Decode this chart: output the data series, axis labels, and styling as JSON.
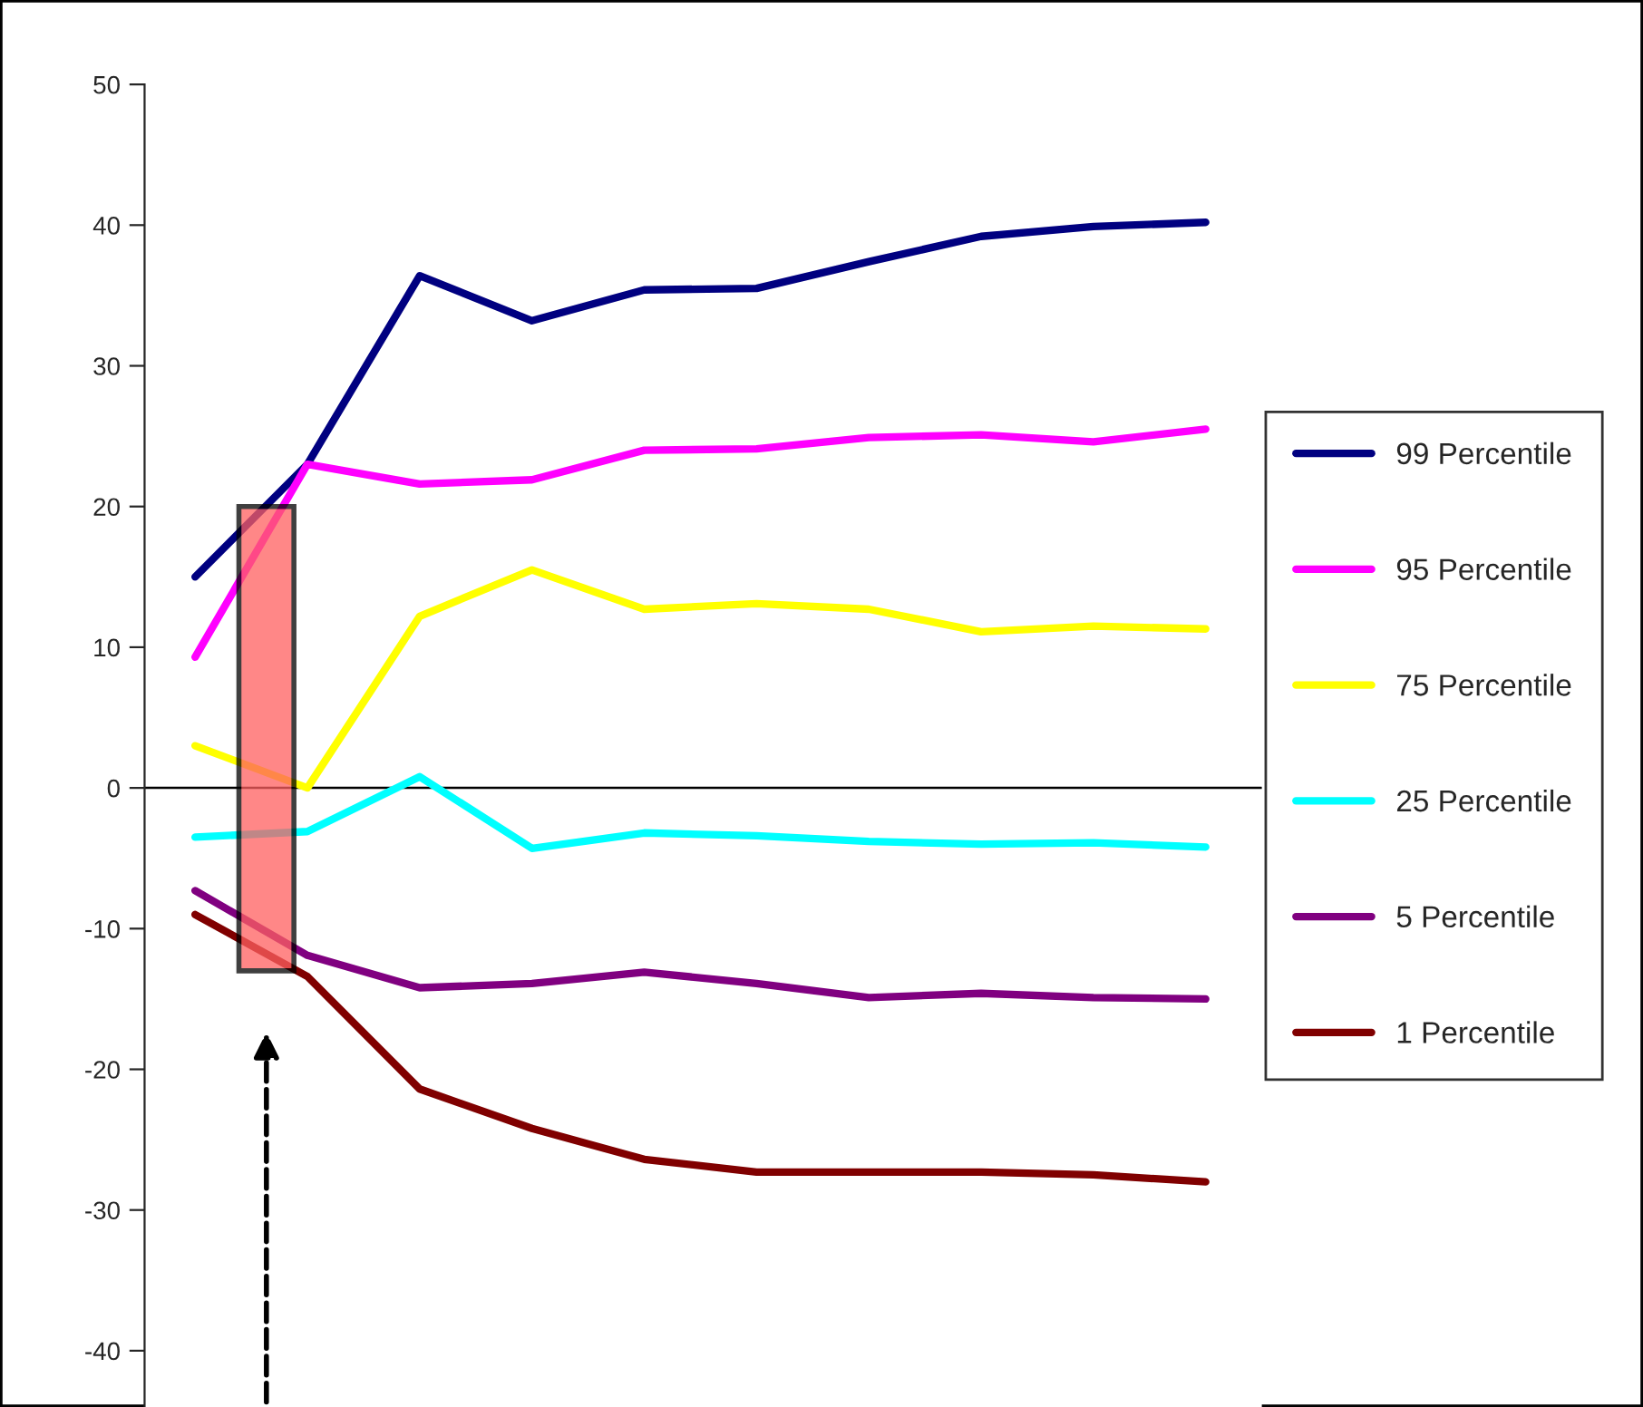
{
  "chart_data": {
    "type": "line",
    "categories": [
      null,
      null,
      null,
      null,
      null,
      null,
      null,
      null,
      null,
      null
    ],
    "series": [
      {
        "name": "99 Percentile",
        "color": "#000080",
        "values": [
          15.0,
          23.0,
          36.4,
          33.2,
          35.4,
          35.5,
          37.4,
          39.2,
          39.9,
          40.2
        ]
      },
      {
        "name": "95 Percentile",
        "color": "#ff00ff",
        "values": [
          9.3,
          23.0,
          21.6,
          21.9,
          24.0,
          24.1,
          24.9,
          25.1,
          24.6,
          25.5
        ]
      },
      {
        "name": "75 Percentile",
        "color": "#ffff00",
        "values": [
          3.0,
          0.0,
          12.2,
          15.5,
          12.7,
          13.1,
          12.7,
          11.1,
          11.5,
          11.3
        ]
      },
      {
        "name": "25 Percentile",
        "color": "#00ffff",
        "values": [
          -3.5,
          -3.1,
          0.8,
          -4.3,
          -3.2,
          -3.4,
          -3.8,
          -4.0,
          -3.9,
          -4.2
        ]
      },
      {
        "name": "5 Percentile",
        "color": "#800080",
        "values": [
          -7.3,
          -11.9,
          -14.2,
          -13.9,
          -13.1,
          -13.9,
          -14.9,
          -14.6,
          -14.9,
          -15.0
        ]
      },
      {
        "name": "1 Percentile",
        "color": "#800000",
        "values": [
          -9.0,
          -13.4,
          -21.4,
          -24.2,
          -26.4,
          -27.3,
          -27.3,
          -27.3,
          -27.5,
          -28.0
        ]
      }
    ],
    "ylim": [
      -44,
      50
    ],
    "yticks": [
      -40,
      -30,
      -20,
      -10,
      0,
      10,
      20,
      30,
      40,
      50
    ],
    "grid": false,
    "ref_lines": [
      {
        "axis": "y",
        "value": 0,
        "color": "#000000"
      }
    ],
    "legend": "right",
    "marker": "none",
    "line_style": "solid"
  }
}
